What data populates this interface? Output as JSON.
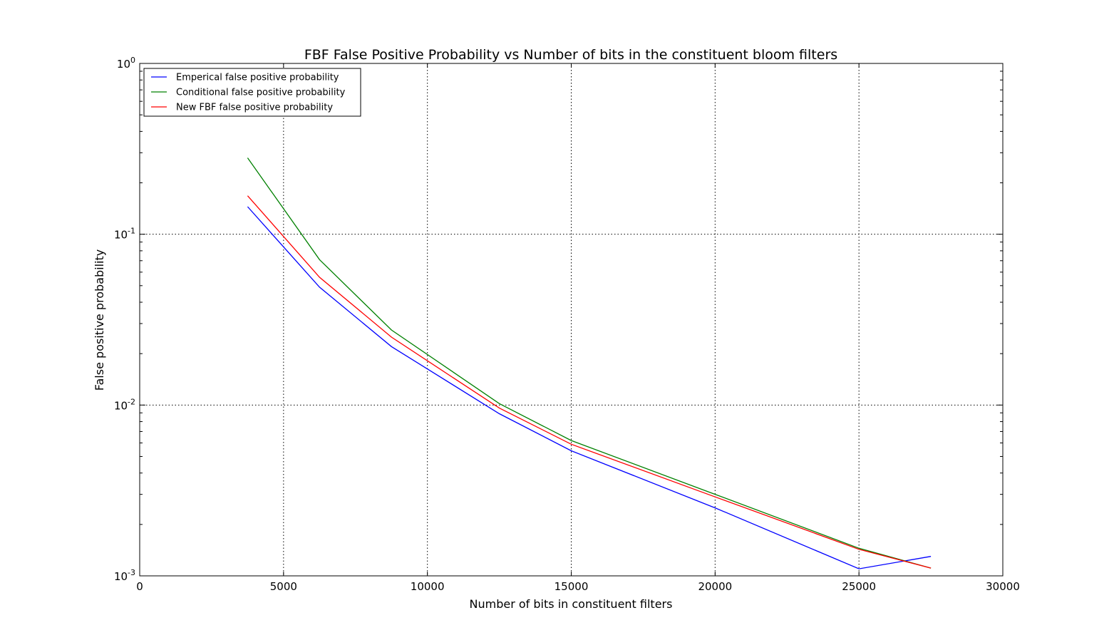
{
  "chart_data": {
    "type": "line",
    "title": "FBF False Positive Probability vs Number of bits in the constituent bloom filters",
    "xlabel": "Number of bits in constituent filters",
    "ylabel": "False positive probability",
    "xlim": [
      0,
      30000
    ],
    "ylim": [
      0.001,
      1
    ],
    "yscale": "log",
    "grid": true,
    "legend_position": "top-left",
    "x_ticks": [
      0,
      5000,
      10000,
      15000,
      20000,
      25000,
      30000
    ],
    "x_tick_labels": [
      "0",
      "5000",
      "10000",
      "15000",
      "20000",
      "25000",
      "30000"
    ],
    "y_ticks": [
      0.001,
      0.01,
      0.1,
      1
    ],
    "y_tick_labels": [
      {
        "base": "10",
        "exp": "-3"
      },
      {
        "base": "10",
        "exp": "-2"
      },
      {
        "base": "10",
        "exp": "-1"
      },
      {
        "base": "10",
        "exp": "0"
      }
    ],
    "x": [
      3750,
      6250,
      8750,
      12500,
      15000,
      20000,
      25000,
      27500
    ],
    "series": [
      {
        "name": "Emperical false positive probability",
        "color": "#0000ff",
        "values": [
          0.145,
          0.049,
          0.022,
          0.0089,
          0.0054,
          0.0025,
          0.0011,
          0.0013
        ]
      },
      {
        "name": "Conditional false positive probability",
        "color": "#008000",
        "values": [
          0.28,
          0.071,
          0.0275,
          0.0102,
          0.0062,
          0.003,
          0.00145,
          0.00111
        ]
      },
      {
        "name": "New FBF false positive probability",
        "color": "#ff0000",
        "values": [
          0.168,
          0.056,
          0.025,
          0.0096,
          0.0059,
          0.0029,
          0.00143,
          0.00111
        ]
      }
    ]
  }
}
